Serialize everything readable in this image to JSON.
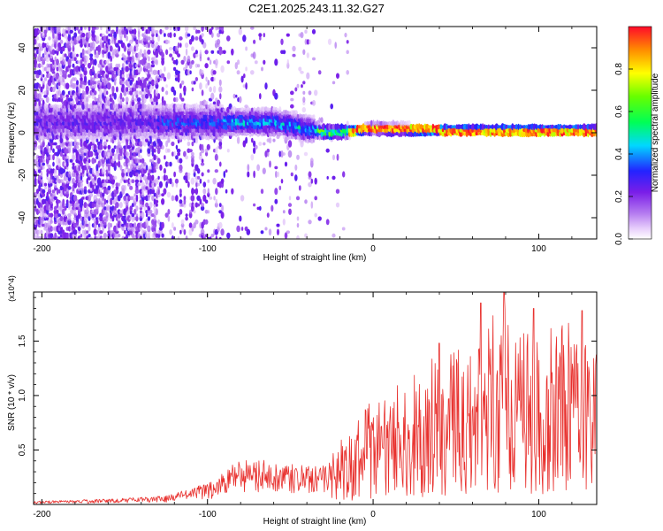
{
  "title": "C2E1.2025.243.11.32.G27",
  "chart_data": [
    {
      "type": "heatmap",
      "xlabel": "Height of straight line (km)",
      "ylabel": "Frequency (Hz)",
      "xlim": [
        -205,
        135
      ],
      "ylim": [
        -50,
        50
      ],
      "xticks": [
        -200,
        -100,
        0,
        100
      ],
      "xtick_labels": [
        "-200",
        "-100",
        "0",
        "100"
      ],
      "yticks": [
        -40,
        -20,
        0,
        20,
        40
      ],
      "ytick_labels": [
        "-40",
        "-20",
        "0",
        "20",
        "40"
      ],
      "colorbar": {
        "label": "Normalized spectral amplitude",
        "range": [
          0,
          1
        ],
        "ticks": [
          0,
          0.2,
          0.4,
          0.6,
          0.8
        ],
        "tick_labels": [
          "0.0",
          "0.2",
          "0.4",
          "0.6",
          "0.8"
        ]
      },
      "band_center_hz": [
        {
          "x": -160,
          "y": 5
        },
        {
          "x": -100,
          "y": 5
        },
        {
          "x": -60,
          "y": 5
        },
        {
          "x": -40,
          "y": 2
        },
        {
          "x": -25,
          "y": 0
        },
        {
          "x": 0,
          "y": 2
        },
        {
          "x": 50,
          "y": 1
        },
        {
          "x": 135,
          "y": 1
        }
      ]
    },
    {
      "type": "line",
      "xlabel": "Height of straight line (km)",
      "ylabel": "SNR (10 * v/v)",
      "scale_label": "(x10^4)",
      "xlim": [
        -205,
        135
      ],
      "ylim": [
        0,
        1.95
      ],
      "xticks": [
        -200,
        -100,
        0,
        100
      ],
      "xtick_labels": [
        "-200",
        "-100",
        "0",
        "100"
      ],
      "yticks": [
        0.5,
        1.0,
        1.5
      ],
      "ytick_labels": [
        "0.5",
        "1.0",
        "1.5"
      ],
      "series": [
        {
          "name": "SNR",
          "color": "#e8302d",
          "envelope": [
            {
              "x": -205,
              "y": 0.03
            },
            {
              "x": -160,
              "y": 0.05
            },
            {
              "x": -125,
              "y": 0.08
            },
            {
              "x": -110,
              "y": 0.15
            },
            {
              "x": -95,
              "y": 0.22
            },
            {
              "x": -85,
              "y": 0.38
            },
            {
              "x": -75,
              "y": 0.42
            },
            {
              "x": -60,
              "y": 0.4
            },
            {
              "x": -45,
              "y": 0.36
            },
            {
              "x": -30,
              "y": 0.36
            },
            {
              "x": -22,
              "y": 0.55
            },
            {
              "x": -10,
              "y": 0.78
            },
            {
              "x": 0,
              "y": 1.0
            },
            {
              "x": 20,
              "y": 1.18
            },
            {
              "x": 40,
              "y": 1.4
            },
            {
              "x": 60,
              "y": 1.6
            },
            {
              "x": 80,
              "y": 1.82
            },
            {
              "x": 100,
              "y": 1.62
            },
            {
              "x": 120,
              "y": 1.7
            },
            {
              "x": 135,
              "y": 1.45
            }
          ],
          "peaks": [
            {
              "x": 40,
              "y": 1.48
            },
            {
              "x": 65,
              "y": 1.85
            },
            {
              "x": 79,
              "y": 1.95
            },
            {
              "x": 97,
              "y": 1.8
            },
            {
              "x": 126,
              "y": 1.78
            }
          ]
        }
      ]
    }
  ]
}
